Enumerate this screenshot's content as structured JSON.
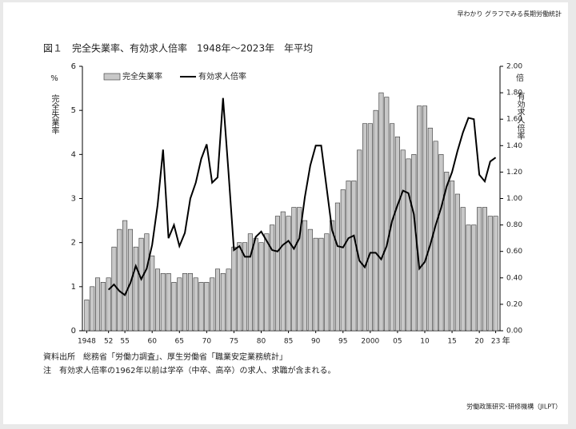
{
  "header": "早わかり グラフでみる長期労働統計",
  "chart_data": {
    "type": "bar",
    "title": "図１　完全失業率、有効求人倍率　1948年～2023年　年平均",
    "categories": [
      "1948",
      null,
      null,
      null,
      "52",
      null,
      null,
      "55",
      null,
      null,
      null,
      null,
      "60",
      null,
      null,
      null,
      null,
      "65",
      null,
      null,
      null,
      null,
      "70",
      null,
      null,
      null,
      null,
      "75",
      null,
      null,
      null,
      null,
      "80",
      null,
      null,
      null,
      null,
      "85",
      null,
      null,
      null,
      null,
      "90",
      null,
      null,
      null,
      null,
      "95",
      null,
      null,
      null,
      null,
      "2000",
      null,
      null,
      null,
      null,
      "05",
      null,
      null,
      null,
      null,
      "10",
      null,
      null,
      null,
      null,
      "15",
      null,
      null,
      null,
      null,
      "20",
      null,
      null,
      "23"
    ],
    "x_unit": "年",
    "ylim": [
      0,
      6
    ],
    "yticks": [
      0,
      1,
      2,
      3,
      4,
      5,
      6
    ],
    "y_unit": "%",
    "ylabel": "完全失業率",
    "y2lim": [
      0,
      2
    ],
    "y2ticks": [
      {
        "value": 0,
        "label": "0.00"
      },
      {
        "value": 0.2,
        "label": "0.20"
      },
      {
        "value": 0.4,
        "label": "0.40"
      },
      {
        "value": 0.6,
        "label": "0.60"
      },
      {
        "value": 0.8,
        "label": "0.80"
      },
      {
        "value": 1,
        "label": "1.00"
      },
      {
        "value": 1.2,
        "label": "1.20"
      },
      {
        "value": 1.4,
        "label": "1.40"
      },
      {
        "value": 1.6,
        "label": "1.60"
      },
      {
        "value": 1.8,
        "label": "1.80"
      },
      {
        "value": 2,
        "label": "2.00"
      }
    ],
    "y2_unit": "倍",
    "y2label": "有効求人倍率",
    "series": [
      {
        "name": "完全失業率",
        "type": "bar",
        "color": "#c8c8c8",
        "values": [
          0.7,
          1.0,
          1.2,
          1.1,
          1.2,
          1.9,
          2.3,
          2.5,
          2.3,
          1.9,
          2.1,
          2.2,
          1.7,
          1.4,
          1.3,
          1.3,
          1.1,
          1.2,
          1.3,
          1.3,
          1.2,
          1.1,
          1.1,
          1.2,
          1.4,
          1.3,
          1.4,
          1.9,
          2.0,
          2.0,
          2.2,
          2.1,
          2.0,
          2.2,
          2.4,
          2.6,
          2.7,
          2.6,
          2.8,
          2.8,
          2.5,
          2.3,
          2.1,
          2.1,
          2.2,
          2.5,
          2.9,
          3.2,
          3.4,
          3.4,
          4.1,
          4.7,
          4.7,
          5.0,
          5.4,
          5.3,
          4.7,
          4.4,
          4.1,
          3.9,
          4.0,
          5.1,
          5.1,
          4.6,
          4.3,
          4.0,
          3.6,
          3.4,
          3.1,
          2.8,
          2.4,
          2.4,
          2.8,
          2.8,
          2.6,
          2.6
        ]
      },
      {
        "name": "有効求人倍率",
        "type": "line",
        "axis": "y2",
        "color": "#000000",
        "values": [
          null,
          null,
          null,
          null,
          0.31,
          0.35,
          0.3,
          0.27,
          0.36,
          0.49,
          0.39,
          0.47,
          0.65,
          0.95,
          1.37,
          0.7,
          0.8,
          0.64,
          0.74,
          1.0,
          1.12,
          1.3,
          1.41,
          1.12,
          1.16,
          1.76,
          1.2,
          0.61,
          0.64,
          0.56,
          0.56,
          0.71,
          0.75,
          0.68,
          0.61,
          0.6,
          0.65,
          0.68,
          0.62,
          0.7,
          1.01,
          1.25,
          1.4,
          1.4,
          1.08,
          0.76,
          0.64,
          0.63,
          0.7,
          0.72,
          0.53,
          0.48,
          0.59,
          0.59,
          0.54,
          0.64,
          0.83,
          0.95,
          1.06,
          1.04,
          0.88,
          0.47,
          0.52,
          0.65,
          0.8,
          0.93,
          1.09,
          1.2,
          1.36,
          1.5,
          1.61,
          1.6,
          1.18,
          1.13,
          1.28,
          1.31
        ]
      }
    ]
  },
  "notes": [
    "資料出所　総務省「労働力調査」、厚生労働省「職業安定業務統計」",
    "注　有効求人倍率の1962年以前は学卒（中卒、高卒）の求人、求職が含まれる。"
  ],
  "footer": "労働政策研究･研修機構（JILPT）"
}
